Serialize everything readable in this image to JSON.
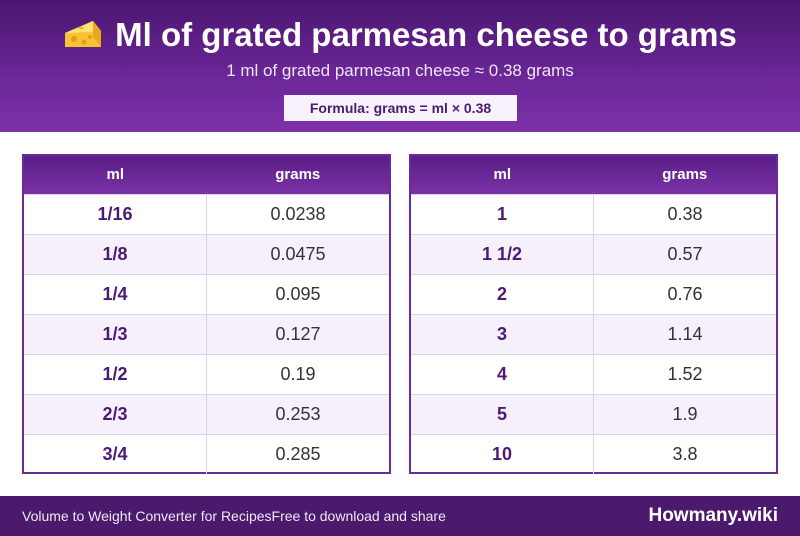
{
  "header": {
    "icon": "cheese-icon",
    "title": "Ml of grated parmesan cheese to grams",
    "subtitle": "1 ml of grated parmesan cheese ≈ 0.38 grams",
    "formula": "Formula: grams = ml × 0.38"
  },
  "tables": [
    {
      "headers": {
        "ml": "ml",
        "grams": "grams"
      },
      "rows": [
        {
          "ml": "1/16",
          "grams": "0.0238"
        },
        {
          "ml": "1/8",
          "grams": "0.0475"
        },
        {
          "ml": "1/4",
          "grams": "0.095"
        },
        {
          "ml": "1/3",
          "grams": "0.127"
        },
        {
          "ml": "1/2",
          "grams": "0.19"
        },
        {
          "ml": "2/3",
          "grams": "0.253"
        },
        {
          "ml": "3/4",
          "grams": "0.285"
        }
      ]
    },
    {
      "headers": {
        "ml": "ml",
        "grams": "grams"
      },
      "rows": [
        {
          "ml": "1",
          "grams": "0.38"
        },
        {
          "ml": "1 1/2",
          "grams": "0.57"
        },
        {
          "ml": "2",
          "grams": "0.76"
        },
        {
          "ml": "3",
          "grams": "1.14"
        },
        {
          "ml": "4",
          "grams": "1.52"
        },
        {
          "ml": "5",
          "grams": "1.9"
        },
        {
          "ml": "10",
          "grams": "3.8"
        }
      ]
    }
  ],
  "footer": {
    "left_text": "Volume to Weight Converter for RecipesFree to download and share",
    "brand": "Howmany.wiki"
  },
  "colors": {
    "header_purple": "#6a2696",
    "accent_text": "#4d1a72",
    "footer_bg": "#4b1a6d",
    "row_alt": "#f5f0fb"
  }
}
